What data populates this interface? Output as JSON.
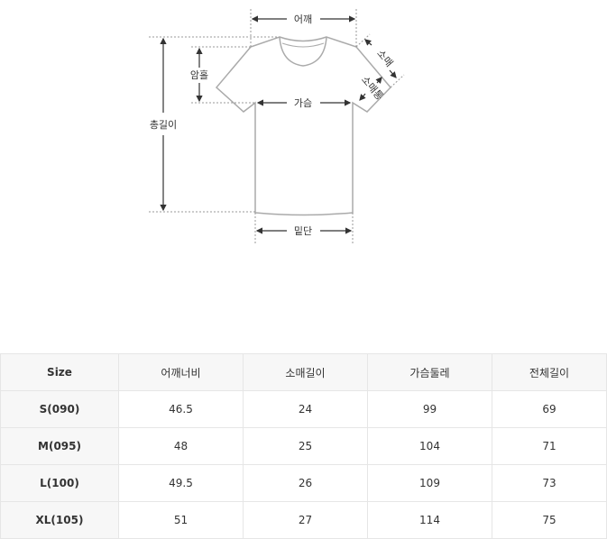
{
  "diagram": {
    "labels": {
      "shoulder": "어깨",
      "armhole": "암홀",
      "total_length": "총길이",
      "chest": "가슴",
      "sleeve": "소매",
      "sleeve_width": "소매통",
      "hem": "밑단"
    }
  },
  "table": {
    "headers": [
      "Size",
      "어깨너비",
      "소매길이",
      "가슴둘레",
      "전체길이"
    ],
    "rows": [
      [
        "S(090)",
        "46.5",
        "24",
        "99",
        "69"
      ],
      [
        "M(095)",
        "48",
        "25",
        "104",
        "71"
      ],
      [
        "L(100)",
        "49.5",
        "26",
        "109",
        "73"
      ],
      [
        "XL(105)",
        "51",
        "27",
        "114",
        "75"
      ]
    ]
  }
}
